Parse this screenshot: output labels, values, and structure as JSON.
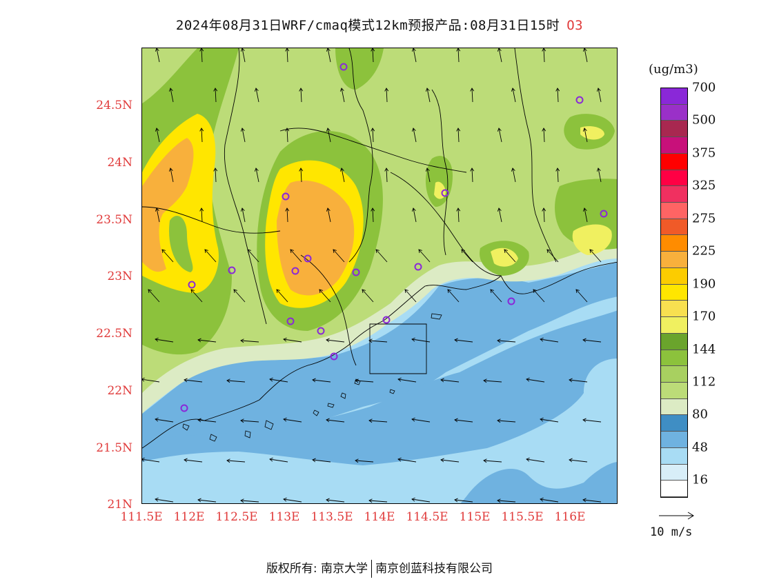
{
  "title": {
    "main": "2024年08月31日WRF/cmaq模式12km预报产品:08月31日15时",
    "species": "O3"
  },
  "axes": {
    "lat_labels": [
      "24.5N",
      "24N",
      "23.5N",
      "23N",
      "22.5N",
      "22N",
      "21.5N",
      "21N"
    ],
    "lon_labels": [
      "111.5E",
      "112E",
      "112.5E",
      "113E",
      "113.5E",
      "114E",
      "114.5E",
      "115E",
      "115.5E",
      "116E"
    ]
  },
  "colorbar": {
    "unit": "(ug/m3)",
    "colors": [
      "#ffffff",
      "#d8eef8",
      "#a8dcf4",
      "#6fb2e0",
      "#3f8ec4",
      "#dcebc4",
      "#bcdc78",
      "#a8d060",
      "#8cc23c",
      "#6aa42c",
      "#f0f060",
      "#f8e050",
      "#ffe600",
      "#fccc00",
      "#f8b03c",
      "#ff8c00",
      "#f05a28",
      "#ff6464",
      "#f03060",
      "#ff0044",
      "#ff0000",
      "#c8107a",
      "#a82850",
      "#9a30c8",
      "#8a28d8"
    ],
    "labels": [
      "16",
      "48",
      "80",
      "112",
      "144",
      "170",
      "190",
      "225",
      "275",
      "325",
      "375",
      "500",
      "700"
    ]
  },
  "wind_key": {
    "label": "10 m/s"
  },
  "footer": {
    "copyright_prefix": "版权所有: 南京大学",
    "company": "南京创蓝科技有限公司"
  },
  "map": {
    "ocean_color": "#a8dcf4",
    "land_base_color": "#bcdc78"
  }
}
